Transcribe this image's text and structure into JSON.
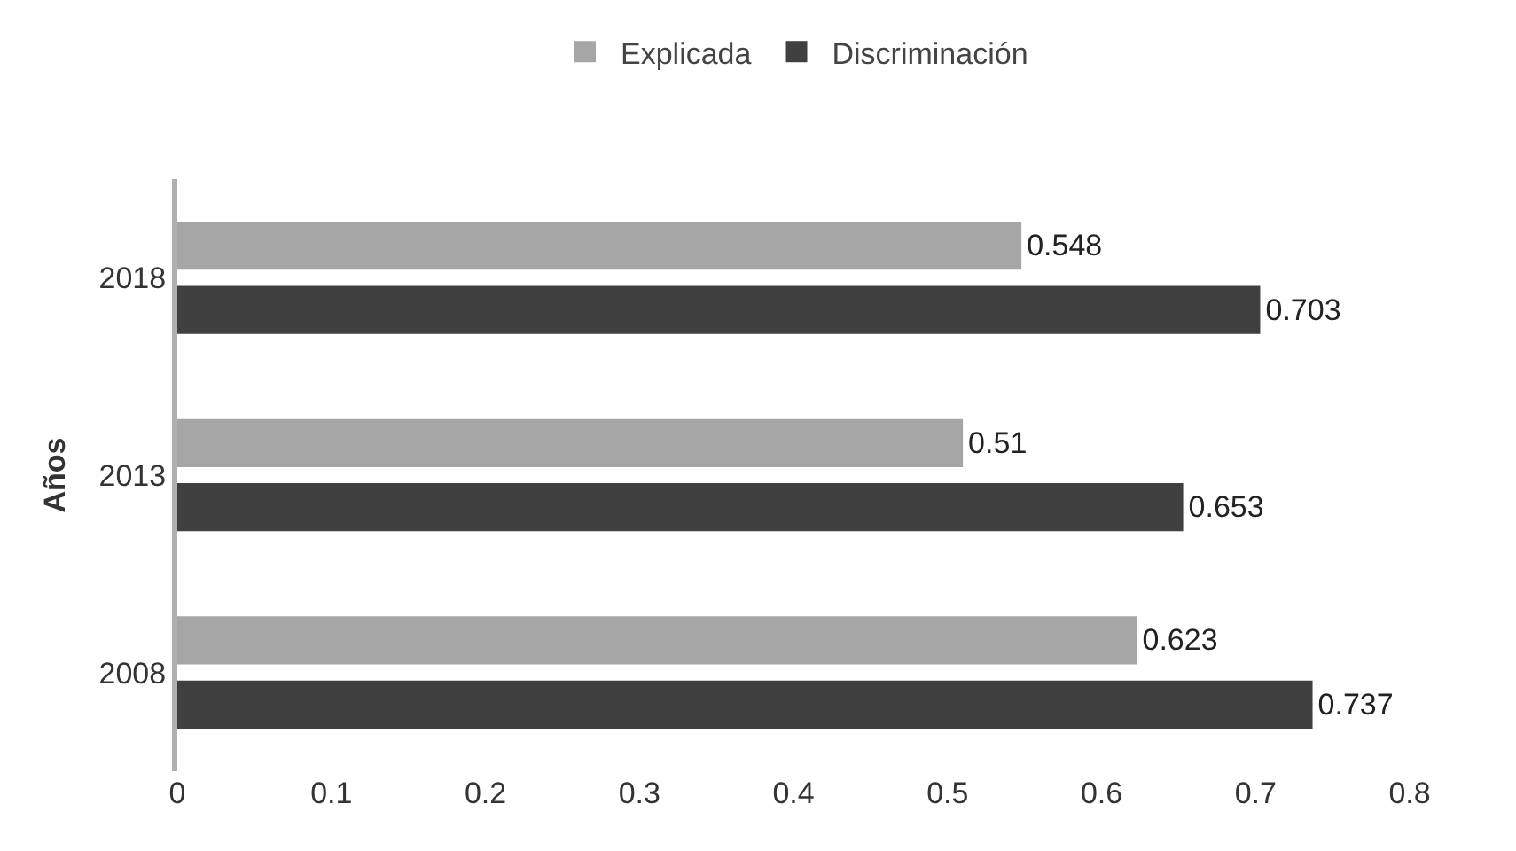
{
  "chart_data": {
    "type": "bar",
    "orientation": "horizontal",
    "ylabel": "Años",
    "categories": [
      "2018",
      "2013",
      "2008"
    ],
    "series": [
      {
        "name": "Explicada",
        "color": "#a6a6a6",
        "values": [
          0.548,
          0.51,
          0.623
        ]
      },
      {
        "name": "Discriminación",
        "color": "#404040",
        "values": [
          0.703,
          0.653,
          0.737
        ]
      }
    ],
    "xlim": [
      0,
      0.8
    ],
    "xticks": [
      0,
      0.1,
      0.2,
      0.3,
      0.4,
      0.5,
      0.6,
      0.7,
      0.8
    ],
    "data_labels": true,
    "legend": "top"
  }
}
